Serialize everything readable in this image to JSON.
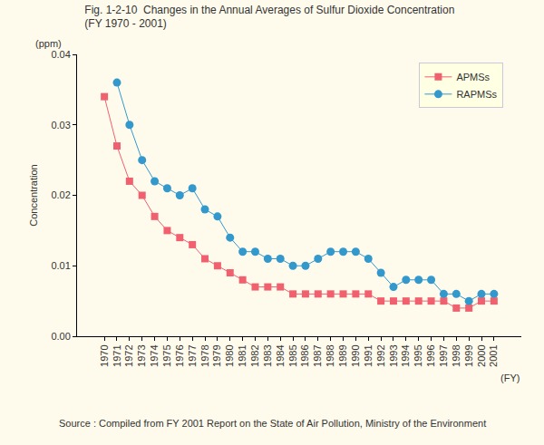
{
  "chart_data": {
    "type": "line",
    "title": [
      "Fig. 1-2-10  Changes in the Annual Averages of Sulfur Dioxide Concentration",
      "(FY 1970 - 2001)"
    ],
    "xlabel": "(FY)",
    "ylabel": "Concentration",
    "annotations": [
      "(ppm)",
      "Source : Compiled from FY 2001 Report on the State of Air Pollution, Ministry of the Environment"
    ],
    "categories": [
      "1970",
      "1971",
      "1972",
      "1973",
      "1974",
      "1975",
      "1976",
      "1977",
      "1978",
      "1979",
      "1980",
      "1981",
      "1982",
      "1983",
      "1984",
      "1985",
      "1986",
      "1987",
      "1988",
      "1989",
      "1990",
      "1991",
      "1992",
      "1993",
      "1994",
      "1995",
      "1996",
      "1997",
      "1998",
      "1999",
      "2000",
      "2001"
    ],
    "series": [
      {
        "name": "APMSs",
        "color": "#f0606e",
        "marker": "square",
        "line_style": "solid",
        "values": [
          0.034,
          0.027,
          0.022,
          0.02,
          0.017,
          0.015,
          0.014,
          0.013,
          0.011,
          0.01,
          0.009,
          0.008,
          0.007,
          0.007,
          0.007,
          0.006,
          0.006,
          0.006,
          0.006,
          0.006,
          0.006,
          0.006,
          0.005,
          0.005,
          0.005,
          0.005,
          0.005,
          0.005,
          0.004,
          0.004,
          0.005,
          0.005
        ]
      },
      {
        "name": "RAPMSs",
        "color": "#3399cc",
        "marker": "circle",
        "line_style": "solid",
        "values": [
          null,
          0.036,
          0.03,
          0.025,
          0.022,
          0.021,
          0.02,
          0.021,
          0.018,
          0.017,
          0.014,
          0.012,
          0.012,
          0.011,
          0.011,
          0.01,
          0.01,
          0.011,
          0.012,
          0.012,
          0.012,
          0.011,
          0.009,
          0.007,
          0.008,
          0.008,
          0.008,
          0.006,
          0.006,
          0.005,
          0.006,
          0.006
        ]
      }
    ],
    "ylim": [
      0,
      0.04
    ],
    "yticks": [
      {
        "value": 0,
        "label": "0.00"
      },
      0.01,
      0.02,
      0.03,
      0.04
    ],
    "grid": false,
    "legend": "upper right"
  }
}
